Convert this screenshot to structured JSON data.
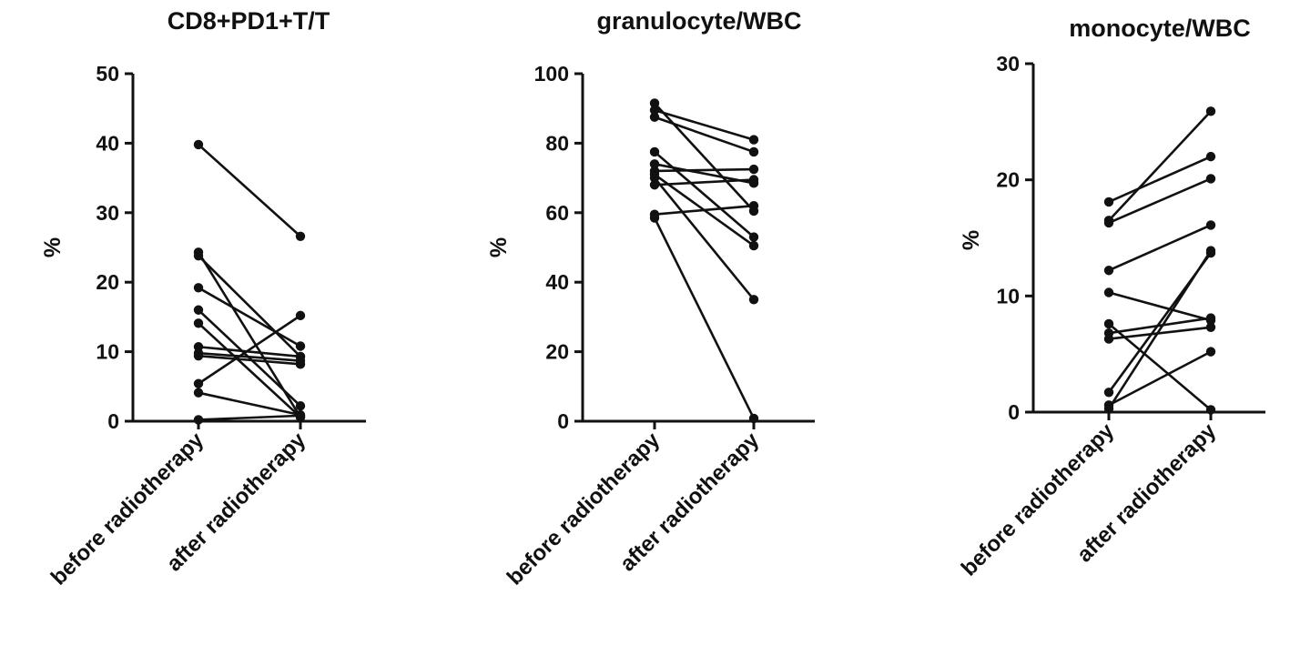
{
  "chart_data": [
    {
      "type": "line",
      "style": "paired dot plot",
      "title": "CD8+PD1+T/T",
      "ylabel": "%",
      "xlabel": "",
      "categories": [
        "before radiotherapy",
        "after radiotherapy"
      ],
      "ylim": [
        0,
        50
      ],
      "yticks": [
        0,
        10,
        20,
        30,
        40,
        50
      ],
      "grid": false,
      "series": [
        {
          "values": [
            39.8,
            26.6
          ]
        },
        {
          "values": [
            24.3,
            0.6
          ]
        },
        {
          "values": [
            23.8,
            9.3
          ]
        },
        {
          "values": [
            19.2,
            10.8
          ]
        },
        {
          "values": [
            16.0,
            2.2
          ]
        },
        {
          "values": [
            14.1,
            0.6
          ]
        },
        {
          "values": [
            10.7,
            9.3
          ]
        },
        {
          "values": [
            9.4,
            8.2
          ]
        },
        {
          "values": [
            5.4,
            15.2
          ]
        },
        {
          "values": [
            4.1,
            0.9
          ]
        },
        {
          "values": [
            0.2,
            0.8
          ]
        },
        {
          "values": [
            9.8,
            8.7
          ]
        }
      ]
    },
    {
      "type": "line",
      "style": "paired dot plot",
      "title": "granulocyte/WBC",
      "ylabel": "%",
      "xlabel": "",
      "categories": [
        "before radiotherapy",
        "after radiotherapy"
      ],
      "ylim": [
        0,
        100
      ],
      "yticks": [
        0,
        20,
        40,
        60,
        80,
        100
      ],
      "grid": false,
      "series": [
        {
          "values": [
            91.5,
            60.5
          ]
        },
        {
          "values": [
            89.5,
            81.0
          ]
        },
        {
          "values": [
            87.5,
            77.5
          ]
        },
        {
          "values": [
            77.5,
            53.0
          ]
        },
        {
          "values": [
            74.0,
            68.5
          ]
        },
        {
          "values": [
            72.0,
            72.5
          ]
        },
        {
          "values": [
            70.0,
            35.0
          ]
        },
        {
          "values": [
            68.0,
            69.5
          ]
        },
        {
          "values": [
            59.5,
            62.0
          ]
        },
        {
          "values": [
            58.5,
            0.8
          ]
        },
        {
          "values": [
            71.0,
            50.5
          ]
        }
      ]
    },
    {
      "type": "line",
      "style": "paired dot plot",
      "title": "monocyte/WBC",
      "ylabel": "%",
      "xlabel": "",
      "categories": [
        "before radiotherapy",
        "after radiotherapy"
      ],
      "ylim": [
        0,
        30
      ],
      "yticks": [
        0,
        10,
        20,
        30
      ],
      "grid": false,
      "series": [
        {
          "values": [
            18.1,
            22.0
          ]
        },
        {
          "values": [
            16.5,
            25.9
          ]
        },
        {
          "values": [
            16.3,
            20.1
          ]
        },
        {
          "values": [
            12.2,
            16.1
          ]
        },
        {
          "values": [
            10.3,
            7.9
          ]
        },
        {
          "values": [
            7.6,
            0.2
          ]
        },
        {
          "values": [
            6.8,
            8.1
          ]
        },
        {
          "values": [
            6.3,
            7.3
          ]
        },
        {
          "values": [
            1.7,
            13.7
          ]
        },
        {
          "values": [
            0.6,
            5.2
          ]
        },
        {
          "values": [
            0.3,
            13.9
          ]
        }
      ]
    }
  ]
}
